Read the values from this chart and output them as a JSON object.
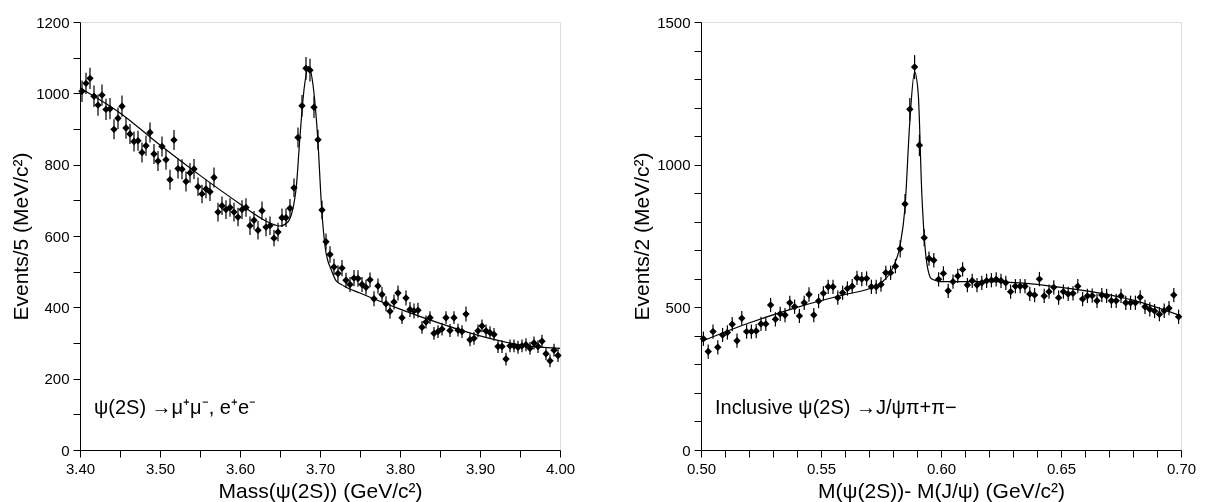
{
  "chart_data": [
    {
      "type": "scatter",
      "xlabel": "Mass(ψ(2S))  (GeV/c²)",
      "ylabel": "Events/5 (MeV/c²)",
      "annotations": [
        "ψ(2S) →μ⁺μ⁻, e⁺e⁻"
      ],
      "xlim": [
        3.4,
        4.0
      ],
      "ylim": [
        0,
        1200
      ],
      "xticks": [
        {
          "value": 3.4,
          "label": "3.40"
        },
        {
          "value": 3.45,
          "label": null
        },
        {
          "value": 3.5,
          "label": "3.50"
        },
        {
          "value": 3.55,
          "label": null
        },
        {
          "value": 3.6,
          "label": "3.60"
        },
        {
          "value": 3.65,
          "label": null
        },
        {
          "value": 3.7,
          "label": "3.70"
        },
        {
          "value": 3.75,
          "label": null
        },
        {
          "value": 3.8,
          "label": "3.80"
        },
        {
          "value": 3.85,
          "label": null
        },
        {
          "value": 3.9,
          "label": "3.90"
        },
        {
          "value": 3.95,
          "label": null
        },
        {
          "value": 4.0,
          "label": "4.00"
        }
      ],
      "yticks": [
        0,
        {
          "value": 100,
          "label": null
        },
        200,
        {
          "value": 300,
          "label": null
        },
        400,
        {
          "value": 500,
          "label": null
        },
        600,
        {
          "value": 700,
          "label": null
        },
        800,
        {
          "value": 900,
          "label": null
        },
        1000,
        {
          "value": 1100,
          "label": null
        },
        1200
      ],
      "grid": false,
      "series": [
        {
          "color": "#000000",
          "marker": "diamond",
          "x": [
            3.4025,
            3.4075,
            3.4125,
            3.4175,
            3.4225,
            3.4275,
            3.4325,
            3.4375,
            3.4425,
            3.4475,
            3.4525,
            3.4575,
            3.4625,
            3.4675,
            3.4725,
            3.4775,
            3.4825,
            3.4875,
            3.4925,
            3.4975,
            3.5025,
            3.5075,
            3.5125,
            3.5175,
            3.5225,
            3.5275,
            3.5325,
            3.5375,
            3.5425,
            3.5475,
            3.5525,
            3.5575,
            3.5625,
            3.5675,
            3.5725,
            3.5775,
            3.5825,
            3.5875,
            3.5925,
            3.5975,
            3.6025,
            3.6075,
            3.6125,
            3.6175,
            3.6225,
            3.6275,
            3.6325,
            3.6375,
            3.6425,
            3.6475,
            3.6525,
            3.6575,
            3.6625,
            3.6675,
            3.6725,
            3.6775,
            3.6825,
            3.6875,
            3.6925,
            3.6975,
            3.7025,
            3.7075,
            3.7125,
            3.7175,
            3.7225,
            3.7275,
            3.7325,
            3.7375,
            3.7425,
            3.7475,
            3.7525,
            3.7575,
            3.7625,
            3.7675,
            3.7725,
            3.7775,
            3.7825,
            3.7875,
            3.7925,
            3.7975,
            3.8025,
            3.8075,
            3.8125,
            3.8175,
            3.8225,
            3.8275,
            3.8325,
            3.8375,
            3.8425,
            3.8475,
            3.8525,
            3.8575,
            3.8625,
            3.8675,
            3.8725,
            3.8775,
            3.8825,
            3.8875,
            3.8925,
            3.8975,
            3.9025,
            3.9075,
            3.9125,
            3.9175,
            3.9225,
            3.9275,
            3.9325,
            3.9375,
            3.9425,
            3.9475,
            3.9525,
            3.9575,
            3.9625,
            3.9675,
            3.9725,
            3.9775,
            3.9825,
            3.9875,
            3.9925,
            3.9975
          ],
          "values": [
            1006,
            1028,
            1042,
            992,
            967,
            995,
            955,
            957,
            899,
            930,
            964,
            903,
            886,
            865,
            867,
            834,
            853,
            890,
            830,
            810,
            851,
            814,
            758,
            869,
            789,
            787,
            753,
            777,
            788,
            738,
            718,
            732,
            724,
            764,
            667,
            685,
            674,
            680,
            667,
            653,
            674,
            680,
            629,
            644,
            616,
            671,
            625,
            629,
            594,
            611,
            651,
            651,
            678,
            735,
            876,
            965,
            1070,
            1065,
            961,
            870,
            673,
            584,
            548,
            513,
            495,
            510,
            476,
            464,
            482,
            481,
            464,
            456,
            477,
            424,
            460,
            436,
            410,
            389,
            415,
            440,
            371,
            426,
            394,
            390,
            392,
            344,
            359,
            371,
            327,
            332,
            339,
            371,
            335,
            371,
            336,
            332,
            381,
            309,
            313,
            334,
            348,
            334,
            329,
            324,
            290,
            290,
            255,
            292,
            292,
            288,
            292,
            295,
            285,
            300,
            290,
            305,
            270,
            250,
            280,
            265
          ],
          "errors": [
            30,
            30,
            30,
            30,
            30,
            30,
            30,
            30,
            28,
            30,
            30,
            30,
            28,
            28,
            28,
            28,
            28,
            28,
            28,
            28,
            28,
            28,
            28,
            28,
            28,
            28,
            28,
            28,
            28,
            26,
            26,
            26,
            26,
            28,
            26,
            26,
            26,
            26,
            26,
            26,
            26,
            26,
            26,
            26,
            26,
            26,
            26,
            26,
            23,
            26,
            26,
            26,
            26,
            26,
            28,
            30,
            32,
            32,
            30,
            28,
            26,
            23,
            23,
            23,
            23,
            23,
            21,
            21,
            23,
            23,
            21,
            21,
            21,
            21,
            21,
            21,
            21,
            21,
            21,
            21,
            18,
            21,
            21,
            21,
            21,
            18,
            18,
            18,
            18,
            18,
            18,
            18,
            18,
            18,
            18,
            18,
            21,
            18,
            18,
            18,
            18,
            18,
            18,
            18,
            18,
            18,
            18,
            18,
            18,
            18,
            18,
            18,
            18,
            18,
            18,
            18,
            18,
            18,
            18,
            18
          ]
        },
        {
          "type": "line",
          "color": "#000000",
          "line_style": "solid",
          "x": [
            3.4,
            3.45,
            3.5,
            3.55,
            3.6,
            3.63,
            3.65,
            3.66,
            3.67,
            3.675,
            3.68,
            3.686,
            3.692,
            3.697,
            3.702,
            3.707,
            3.715,
            3.72,
            3.73,
            3.75,
            3.8,
            3.85,
            3.9,
            3.95,
            4.0
          ],
          "values": [
            1015,
            945,
            855,
            770,
            690,
            645,
            628,
            640,
            730,
            880,
            1010,
            1075,
            1010,
            880,
            680,
            560,
            500,
            475,
            460,
            440,
            395,
            355,
            320,
            295,
            285
          ]
        }
      ]
    },
    {
      "type": "scatter",
      "xlabel": "M(ψ(2S))- M(J/ψ) (GeV/c²)",
      "ylabel": "Events/2 (MeV/c²)",
      "annotations": [
        "Inclusive ψ(2S) →J/ψπ+π−"
      ],
      "xlim": [
        0.5,
        0.7
      ],
      "ylim": [
        0,
        1500
      ],
      "xticks": [
        {
          "value": 0.5,
          "label": "0.50"
        },
        {
          "value": 0.51,
          "label": null
        },
        {
          "value": 0.52,
          "label": null
        },
        {
          "value": 0.53,
          "label": null
        },
        {
          "value": 0.54,
          "label": null
        },
        {
          "value": 0.55,
          "label": "0.55"
        },
        {
          "value": 0.56,
          "label": null
        },
        {
          "value": 0.57,
          "label": null
        },
        {
          "value": 0.58,
          "label": null
        },
        {
          "value": 0.59,
          "label": null
        },
        {
          "value": 0.6,
          "label": "0.60"
        },
        {
          "value": 0.61,
          "label": null
        },
        {
          "value": 0.62,
          "label": null
        },
        {
          "value": 0.63,
          "label": null
        },
        {
          "value": 0.64,
          "label": null
        },
        {
          "value": 0.65,
          "label": "0.65"
        },
        {
          "value": 0.66,
          "label": null
        },
        {
          "value": 0.67,
          "label": null
        },
        {
          "value": 0.68,
          "label": null
        },
        {
          "value": 0.69,
          "label": null
        },
        {
          "value": 0.7,
          "label": "0.70"
        }
      ],
      "yticks": [
        0,
        {
          "value": 100,
          "label": null
        },
        {
          "value": 200,
          "label": null
        },
        {
          "value": 300,
          "label": null
        },
        {
          "value": 400,
          "label": null
        },
        500,
        {
          "value": 600,
          "label": null
        },
        {
          "value": 700,
          "label": null
        },
        {
          "value": 800,
          "label": null
        },
        {
          "value": 900,
          "label": null
        },
        1000,
        {
          "value": 1100,
          "label": null
        },
        {
          "value": 1200,
          "label": null
        },
        {
          "value": 1300,
          "label": null
        },
        {
          "value": 1400,
          "label": null
        },
        1500
      ],
      "grid": false,
      "series": [
        {
          "color": "#000000",
          "marker": "diamond",
          "x": [
            0.501,
            0.503,
            0.505,
            0.507,
            0.509,
            0.511,
            0.513,
            0.515,
            0.517,
            0.519,
            0.521,
            0.523,
            0.525,
            0.527,
            0.529,
            0.531,
            0.533,
            0.535,
            0.537,
            0.539,
            0.541,
            0.543,
            0.545,
            0.547,
            0.549,
            0.551,
            0.553,
            0.555,
            0.557,
            0.559,
            0.561,
            0.563,
            0.565,
            0.567,
            0.569,
            0.571,
            0.573,
            0.575,
            0.577,
            0.579,
            0.581,
            0.583,
            0.585,
            0.587,
            0.589,
            0.591,
            0.593,
            0.595,
            0.597,
            0.599,
            0.601,
            0.603,
            0.605,
            0.607,
            0.609,
            0.611,
            0.613,
            0.615,
            0.617,
            0.619,
            0.621,
            0.623,
            0.625,
            0.627,
            0.629,
            0.631,
            0.633,
            0.635,
            0.637,
            0.639,
            0.641,
            0.643,
            0.645,
            0.647,
            0.649,
            0.651,
            0.653,
            0.655,
            0.657,
            0.659,
            0.661,
            0.663,
            0.665,
            0.667,
            0.669,
            0.671,
            0.673,
            0.675,
            0.677,
            0.679,
            0.681,
            0.683,
            0.685,
            0.687,
            0.689,
            0.691,
            0.693,
            0.695,
            0.697,
            0.699
          ],
          "values": [
            390,
            345,
            415,
            360,
            403,
            412,
            441,
            383,
            462,
            415,
            415,
            417,
            442,
            442,
            508,
            458,
            477,
            473,
            516,
            502,
            470,
            516,
            545,
            473,
            522,
            549,
            572,
            572,
            534,
            551,
            566,
            574,
            603,
            599,
            601,
            572,
            572,
            580,
            621,
            621,
            644,
            705,
            862,
            1194,
            1342,
            1068,
            744,
            671,
            665,
            598,
            619,
            558,
            590,
            610,
            633,
            578,
            593,
            578,
            586,
            593,
            595,
            598,
            593,
            586,
            555,
            574,
            574,
            574,
            547,
            543,
            599,
            540,
            555,
            570,
            534,
            555,
            547,
            549,
            574,
            529,
            540,
            541,
            523,
            543,
            540,
            523,
            523,
            540,
            516,
            516,
            516,
            535,
            502,
            493,
            487,
            476,
            488,
            497,
            543,
            467
          ],
          "errors": [
            25,
            25,
            25,
            25,
            25,
            25,
            25,
            25,
            25,
            25,
            25,
            25,
            25,
            25,
            25,
            25,
            25,
            25,
            25,
            25,
            25,
            25,
            25,
            25,
            25,
            25,
            25,
            25,
            25,
            25,
            25,
            25,
            25,
            25,
            25,
            25,
            25,
            25,
            25,
            25,
            25,
            30,
            35,
            40,
            42,
            38,
            30,
            25,
            25,
            25,
            25,
            25,
            25,
            25,
            25,
            25,
            25,
            25,
            25,
            25,
            25,
            25,
            25,
            25,
            25,
            25,
            25,
            25,
            25,
            25,
            25,
            25,
            25,
            25,
            25,
            25,
            25,
            25,
            25,
            25,
            25,
            25,
            25,
            25,
            25,
            25,
            25,
            25,
            25,
            25,
            25,
            25,
            25,
            25,
            25,
            25,
            25,
            25,
            25,
            25
          ]
        },
        {
          "type": "line",
          "color": "#000000",
          "line_style": "solid",
          "x": [
            0.5,
            0.52,
            0.54,
            0.56,
            0.57,
            0.575,
            0.58,
            0.583,
            0.585,
            0.587,
            0.589,
            0.5905,
            0.592,
            0.594,
            0.596,
            0.6,
            0.62,
            0.65,
            0.68,
            0.7
          ],
          "values": [
            380,
            445,
            500,
            545,
            565,
            585,
            640,
            720,
            850,
            1150,
            1325,
            1250,
            900,
            660,
            600,
            590,
            590,
            570,
            525,
            470
          ]
        }
      ]
    }
  ]
}
